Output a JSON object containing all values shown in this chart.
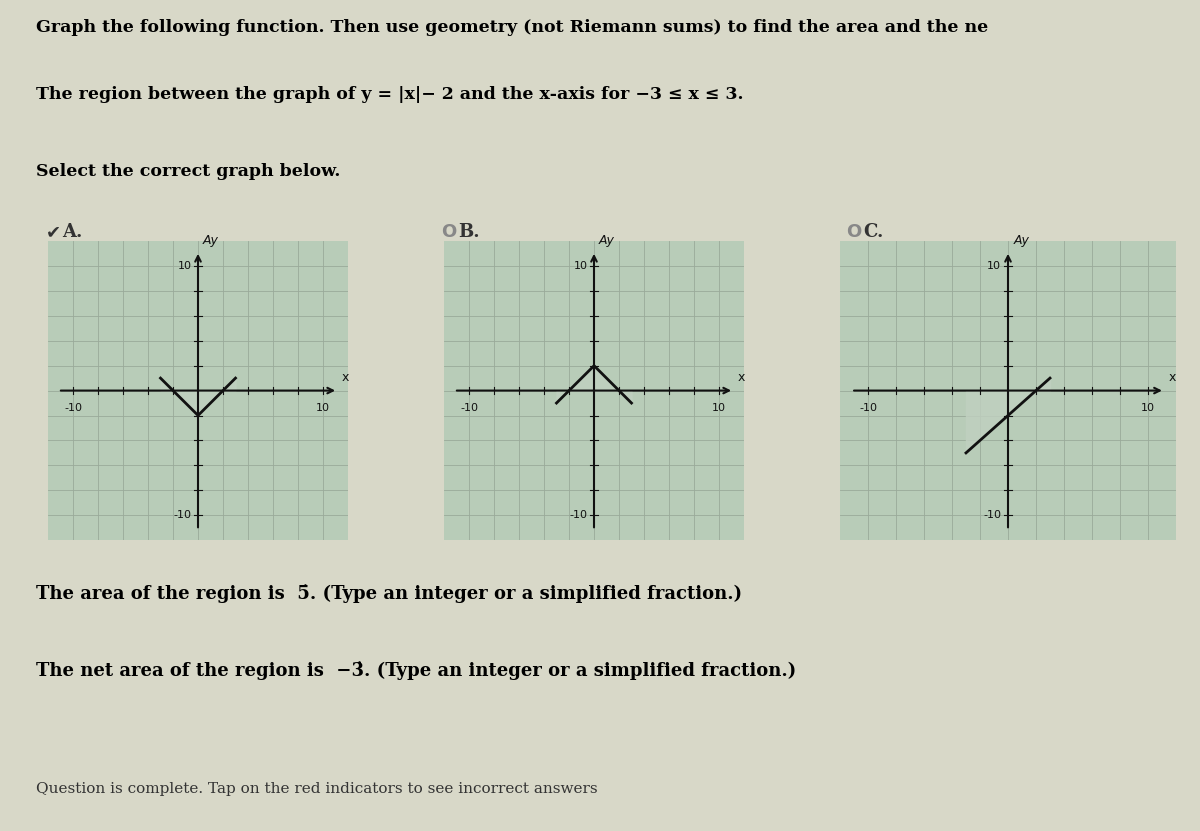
{
  "page_bg": "#d8d8c8",
  "top_bg": "#ffffff",
  "graph_bg": "#b8ccb8",
  "grid_color": "#9aaa9a",
  "axis_color": "#111111",
  "line_color": "#111111",
  "title_line1": "Graph the following function. Then use geometry (not Riemann sums) to find the area and the ne",
  "title_line2": "The region between the graph of y = |x|− 2 and the x-axis for −3 ≤ x ≤ 3.",
  "title_line3": "Select the correct graph below.",
  "label_A": "A.",
  "label_B": "B.",
  "label_C": "C.",
  "answer1": "The area of the region is  5̇. (Type an integer or a simplified fraction.)",
  "answer2": "The net area of the region is  −3̇. (Type an integer or a simplified fraction.)",
  "footer": "Question is complete. Tap on the red indicators to see incorrect answers",
  "xlim": [
    -12,
    12
  ],
  "ylim": [
    -12,
    12
  ]
}
